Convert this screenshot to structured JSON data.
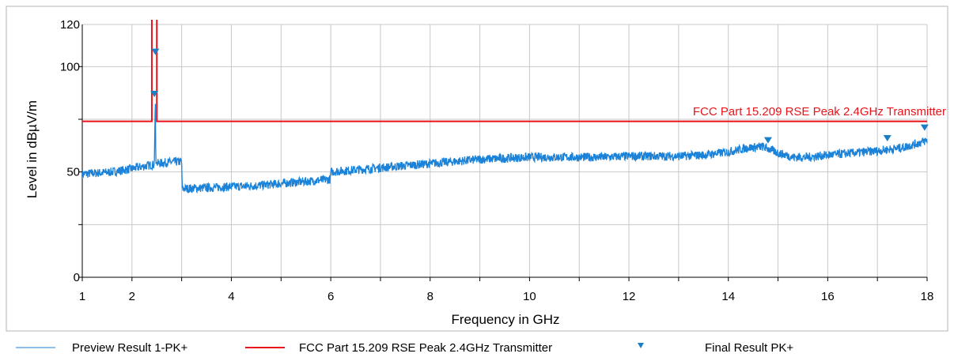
{
  "chart_data": {
    "type": "line",
    "xlabel": "Frequency in GHz",
    "ylabel": "Level in dBµV/m",
    "xlim": [
      1,
      18
    ],
    "ylim": [
      0,
      120
    ],
    "x_scale": "linear",
    "x_ticks": [
      1,
      2,
      4,
      6,
      8,
      10,
      12,
      14,
      16,
      18
    ],
    "x_tick_labels": [
      "1",
      "2",
      "4",
      "6",
      "8",
      "10",
      "12",
      "14",
      "16",
      "18"
    ],
    "y_ticks": [
      0,
      50,
      100,
      120
    ],
    "y_tick_labels": [
      "0",
      "50",
      "100",
      "120"
    ],
    "grid": true,
    "legend_position": "bottom",
    "colors": {
      "preview": "#1a82d8",
      "limit": "#e8141b",
      "final": "#1a7fc4",
      "grid": "#c8c8c8"
    },
    "series": [
      {
        "name": "Preview Result 1-PK+",
        "type": "line",
        "x": [
          1.0,
          1.3,
          1.6,
          2.0,
          2.3,
          2.45,
          2.47,
          2.48,
          2.5,
          2.7,
          3.0,
          3.01,
          3.5,
          4.0,
          4.5,
          5.0,
          5.5,
          5.99,
          6.0,
          6.5,
          7.0,
          7.5,
          8.0,
          8.5,
          9.0,
          9.5,
          10.0,
          10.5,
          11.0,
          11.5,
          12.0,
          12.5,
          13.0,
          13.5,
          14.0,
          14.4,
          14.7,
          15.0,
          15.3,
          15.6,
          16.0,
          16.5,
          17.0,
          17.5,
          17.8,
          18.0
        ],
        "y": [
          49,
          49.5,
          50,
          51.5,
          53,
          53.5,
          86,
          54,
          54,
          54.5,
          55,
          42,
          42.5,
          43,
          43.5,
          44.5,
          45.5,
          46.5,
          50,
          51,
          52,
          53,
          54,
          55,
          56,
          56.5,
          57,
          57,
          57,
          57,
          57.5,
          57.5,
          57.5,
          58,
          59.5,
          61.5,
          62,
          59,
          57,
          57,
          58,
          59,
          60,
          61.5,
          63.5,
          65
        ]
      },
      {
        "name": "FCC Part 15.209 RSE Peak 2.4GHz Transmitter",
        "type": "step",
        "x": [
          1.0,
          2.4,
          2.4,
          2.5,
          2.5,
          18.0
        ],
        "y": [
          74,
          74,
          125,
          125,
          74,
          74
        ],
        "label": "FCC Part 15.209 RSE Peak 2.4GHz Transmitter"
      },
      {
        "name": "Final  Result PK+",
        "type": "scatter",
        "marker": "triangle-down",
        "x": [
          2.45,
          2.47,
          14.8,
          17.2,
          17.95
        ],
        "y": [
          87,
          107,
          65,
          66,
          71
        ]
      }
    ]
  }
}
